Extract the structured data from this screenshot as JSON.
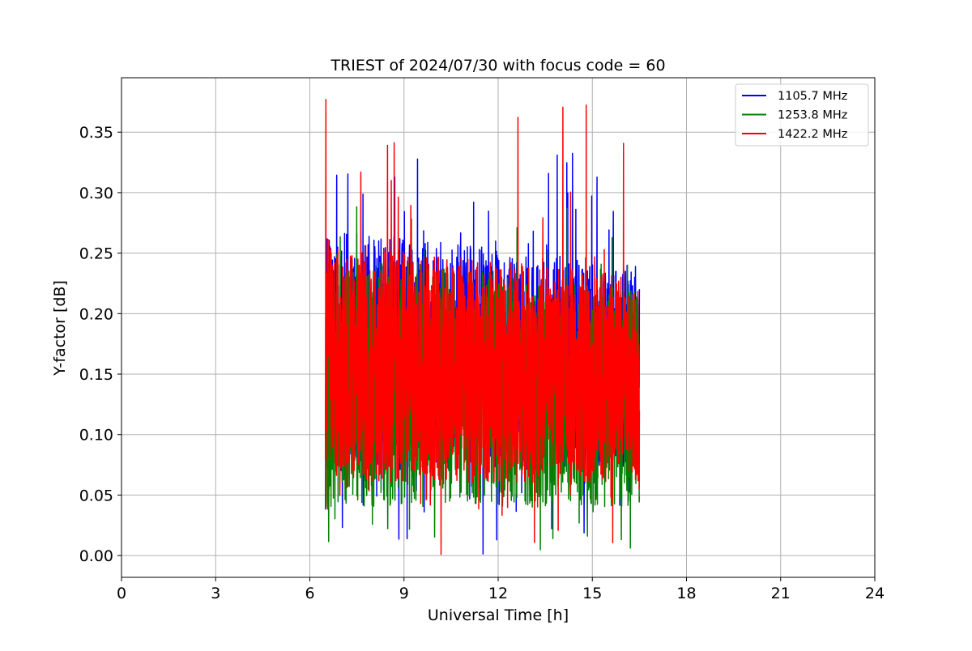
{
  "chart_data": {
    "type": "line",
    "title": "TRIEST of 2024/07/30 with focus code = 60",
    "xlabel": "Universal Time [h]",
    "ylabel": "Y-factor [dB]",
    "xlim": [
      0,
      24
    ],
    "ylim": [
      -0.018,
      0.395
    ],
    "x_ticks": [
      0,
      3,
      6,
      9,
      12,
      15,
      18,
      21,
      24
    ],
    "x_tick_labels": [
      "0",
      "3",
      "6",
      "9",
      "12",
      "15",
      "18",
      "21",
      "24"
    ],
    "y_ticks": [
      0.0,
      0.05,
      0.1,
      0.15,
      0.2,
      0.25,
      0.3,
      0.35
    ],
    "y_tick_labels": [
      "0.00",
      "0.05",
      "0.10",
      "0.15",
      "0.20",
      "0.25",
      "0.30",
      "0.35"
    ],
    "grid": true,
    "legend_position": "top-right",
    "x_range_of_data": [
      6.5,
      16.5
    ],
    "series": [
      {
        "name": "1105.7 MHz",
        "color": "#0000ff",
        "band_low": 0.07,
        "band_high": 0.27,
        "peak_max": 0.338,
        "peak_min": 0.0
      },
      {
        "name": "1253.8 MHz",
        "color": "#008000",
        "band_low": 0.04,
        "band_high": 0.25,
        "peak_max": 0.29,
        "peak_min": 0.0
      },
      {
        "name": "1422.2 MHz",
        "color": "#ff0000",
        "band_low": 0.06,
        "band_high": 0.26,
        "peak_max": 0.377,
        "peak_min": 0.0
      }
    ]
  }
}
